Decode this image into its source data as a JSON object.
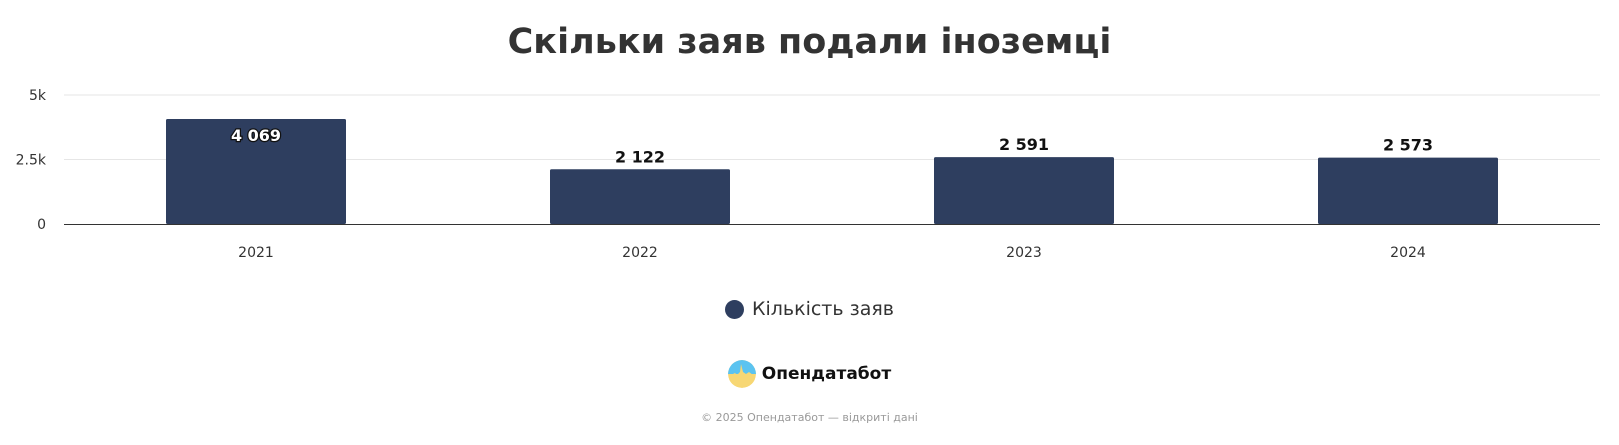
{
  "chart_data": {
    "type": "bar",
    "title": "Скільки заяв подали іноземці",
    "categories": [
      "2021",
      "2022",
      "2023",
      "2024"
    ],
    "series": [
      {
        "name": "Кількість заяв",
        "values": [
          4069,
          2122,
          2591,
          2573
        ],
        "color": "#2e3e5f"
      }
    ],
    "data_labels": [
      "4 069",
      "2 122",
      "2 591",
      "2 573"
    ],
    "ylim": [
      0,
      5000
    ],
    "y_ticks": [
      0,
      2500,
      5000
    ],
    "y_tick_labels": [
      "0",
      "2.5k",
      "5k"
    ],
    "xlabel": "",
    "ylabel": "",
    "grid": true,
    "legend_position": "bottom"
  },
  "branding": {
    "name": "Опендатабот",
    "footer": "© 2025 Опендатабот — відкриті дані",
    "logo_icon": "opendatabot-logo-icon",
    "logo_colors": [
      "#5bc3f0",
      "#f7d774"
    ]
  },
  "colors": {
    "bar": "#2e3e5f",
    "grid": "#e6e6e6",
    "axis": "#333333"
  }
}
